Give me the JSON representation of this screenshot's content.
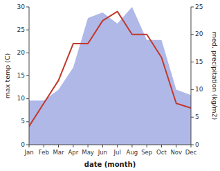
{
  "chart_data": {
    "type": "line",
    "categories": [
      "Jan",
      "Feb",
      "Mar",
      "Apr",
      "May",
      "Jun",
      "Jul",
      "Aug",
      "Sep",
      "Oct",
      "Nov",
      "Dec"
    ],
    "series": [
      {
        "type": "area",
        "axis": "y2",
        "color": "#b0b8e8",
        "values": [
          8.0,
          8.0,
          10.0,
          14.0,
          23.0,
          24.0,
          22.0,
          25.0,
          19.0,
          19.0,
          10.0,
          9.0
        ]
      },
      {
        "type": "line",
        "color": "#c0392b",
        "values": [
          4.0,
          9.0,
          14.0,
          22.0,
          22.0,
          27.0,
          29.0,
          24.0,
          24.0,
          19.0,
          9.0,
          8.0
        ]
      }
    ],
    "xlabel": "date (month)",
    "ylabel": "max temp (C)",
    "y2label": "med. precipitation (kg/m2)",
    "ylim": [
      0,
      30
    ],
    "yticks": [
      0,
      5,
      10,
      15,
      20,
      25,
      30
    ],
    "y2lim": [
      0,
      25
    ],
    "y2ticks": [
      0,
      5,
      10,
      15,
      20,
      25
    ],
    "grid": false
  }
}
